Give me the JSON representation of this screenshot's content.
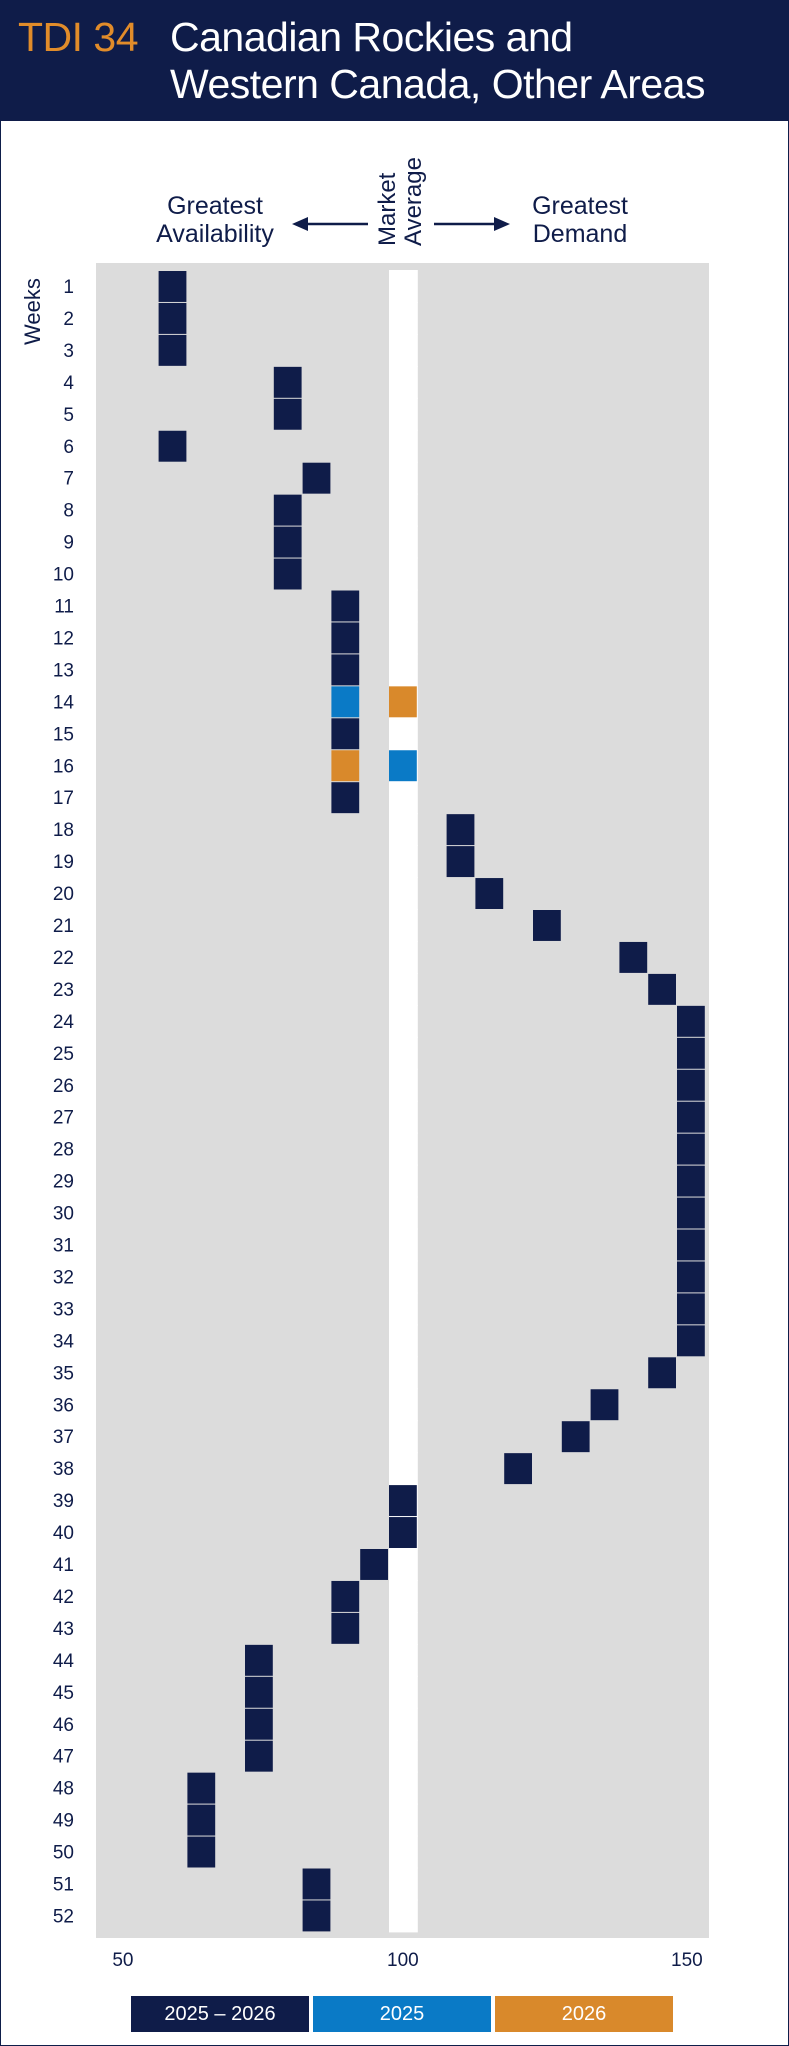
{
  "header": {
    "code": "TDI 34",
    "title_line1": "Canadian Rockies and",
    "title_line2": "Western Canada, Other Areas"
  },
  "labels": {
    "left_line1": "Greatest",
    "left_line2": "Availability",
    "center_line1": "Market",
    "center_line2": "Average",
    "right_line1": "Greatest",
    "right_line2": "Demand",
    "weeks": "Weeks"
  },
  "legend": [
    {
      "label": "2025 – 2026",
      "color": "#0f1c49"
    },
    {
      "label": "2025",
      "color": "#0a7ac6"
    },
    {
      "label": "2026",
      "color": "#d9892b"
    }
  ],
  "colors": {
    "navy": "#0f1c49",
    "blue": "#0a7ac6",
    "orange": "#d9892b",
    "cell": "#dcdcdc",
    "grid_line": "#ffffff"
  },
  "chart_data": {
    "type": "heatmap",
    "x_ticks": [
      50,
      100,
      150
    ],
    "xlim": [
      50,
      150
    ],
    "ylabel": "Weeks",
    "weeks": [
      1,
      2,
      3,
      4,
      5,
      6,
      7,
      8,
      9,
      10,
      11,
      12,
      13,
      14,
      15,
      16,
      17,
      18,
      19,
      20,
      21,
      22,
      23,
      24,
      25,
      26,
      27,
      28,
      29,
      30,
      31,
      32,
      33,
      34,
      35,
      36,
      37,
      38,
      39,
      40,
      41,
      42,
      43,
      44,
      45,
      46,
      47,
      48,
      49,
      50,
      51,
      52
    ],
    "series": [
      {
        "name": "2025 – 2026",
        "values": [
          60,
          60,
          60,
          80,
          80,
          60,
          85,
          80,
          80,
          80,
          90,
          90,
          90,
          null,
          90,
          null,
          90,
          110,
          110,
          115,
          125,
          140,
          145,
          150,
          150,
          150,
          150,
          150,
          150,
          150,
          150,
          150,
          150,
          150,
          145,
          135,
          130,
          120,
          100,
          100,
          95,
          90,
          90,
          75,
          75,
          75,
          75,
          65,
          65,
          65,
          85,
          85
        ]
      },
      {
        "name": "2025",
        "points": [
          {
            "week": 14,
            "value": 90
          },
          {
            "week": 16,
            "value": 100
          }
        ]
      },
      {
        "name": "2026",
        "points": [
          {
            "week": 14,
            "value": 100
          },
          {
            "week": 16,
            "value": 90
          }
        ]
      }
    ]
  }
}
